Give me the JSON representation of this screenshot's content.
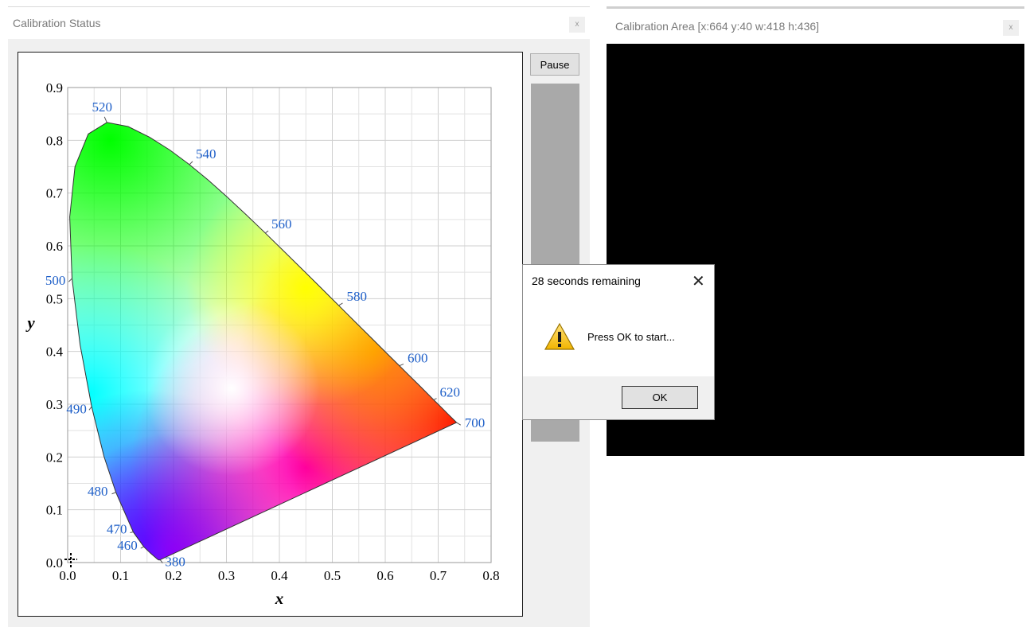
{
  "status_window": {
    "title": "Calibration Status",
    "close_label": "x",
    "pause_label": "Pause"
  },
  "area_window": {
    "title": "Calibration Area [x:664 y:40 w:418 h:436]",
    "close_label": "x"
  },
  "dialog": {
    "title": "28 seconds remaining",
    "close_glyph": "✕",
    "message": "Press OK to start...",
    "ok_label": "OK",
    "icon": "warning-icon"
  },
  "chart_data": {
    "type": "scatter",
    "xlabel": "x",
    "ylabel": "y",
    "xlim": [
      0,
      0.8
    ],
    "ylim": [
      0,
      0.9
    ],
    "xticks": [
      "0.0",
      "0.1",
      "0.2",
      "0.3",
      "0.4",
      "0.5",
      "0.6",
      "0.7",
      "0.8"
    ],
    "yticks": [
      "0.0",
      "0.1",
      "0.2",
      "0.3",
      "0.4",
      "0.5",
      "0.6",
      "0.7",
      "0.8",
      "0.9"
    ],
    "grid": true,
    "wavelength_labels": [
      {
        "nm": "380",
        "x": 0.175,
        "y": 0.005
      },
      {
        "nm": "460",
        "x": 0.144,
        "y": 0.03
      },
      {
        "nm": "470",
        "x": 0.124,
        "y": 0.058
      },
      {
        "nm": "480",
        "x": 0.091,
        "y": 0.133
      },
      {
        "nm": "490",
        "x": 0.045,
        "y": 0.295
      },
      {
        "nm": "500",
        "x": 0.008,
        "y": 0.538
      },
      {
        "nm": "520",
        "x": 0.074,
        "y": 0.834
      },
      {
        "nm": "540",
        "x": 0.23,
        "y": 0.754
      },
      {
        "nm": "560",
        "x": 0.373,
        "y": 0.624
      },
      {
        "nm": "580",
        "x": 0.512,
        "y": 0.487
      },
      {
        "nm": "600",
        "x": 0.627,
        "y": 0.373
      },
      {
        "nm": "620",
        "x": 0.691,
        "y": 0.308
      },
      {
        "nm": "700",
        "x": 0.735,
        "y": 0.265
      }
    ]
  }
}
